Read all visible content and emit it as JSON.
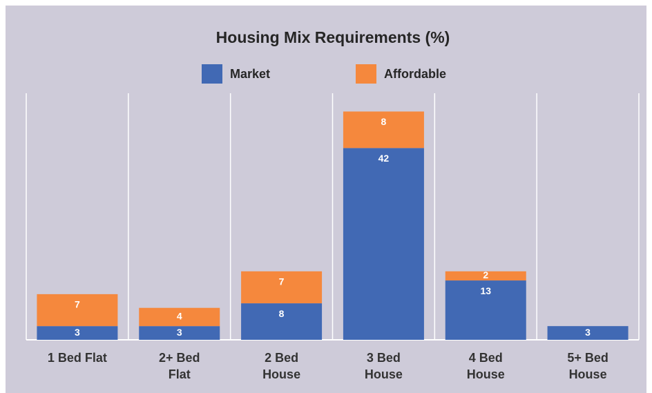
{
  "chart_data": {
    "type": "stacked_bar",
    "title": "Housing Mix Requirements (%)",
    "categories": [
      "1 Bed Flat",
      "2+ Bed Flat",
      "2 Bed House",
      "3 Bed House",
      "4 Bed House",
      "5+ Bed House"
    ],
    "series": [
      {
        "name": "Market",
        "color": "#4169b4",
        "values": [
          3,
          3,
          8,
          42,
          13,
          3
        ]
      },
      {
        "name": "Affordable",
        "color": "#f5883d",
        "values": [
          7,
          4,
          7,
          8,
          2,
          0
        ]
      }
    ],
    "ylim": [
      0,
      54
    ]
  }
}
